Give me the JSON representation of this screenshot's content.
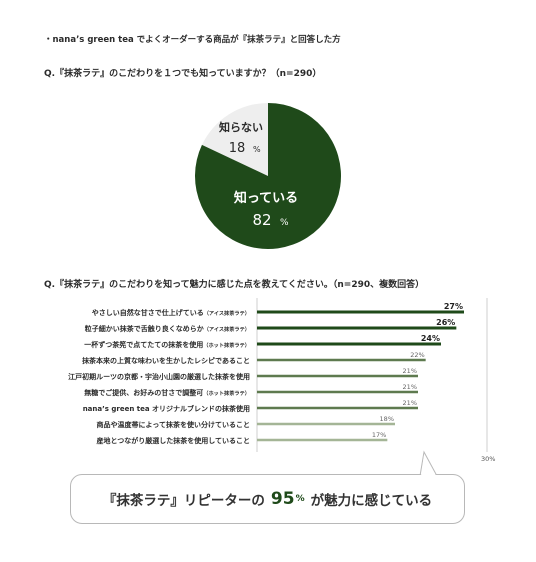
{
  "note": "・nana’s green tea でよくオーダーする商品が『抹茶ラテ』と回答した方",
  "callout": {
    "before": "『抹茶ラテ』リピーターの",
    "value": "95",
    "unit": "%",
    "after": "が魅力に感じている"
  },
  "colors": {
    "dark_green": "#1f4a1a",
    "mid_green": "#5e7a4f",
    "light_green": "#a4b596",
    "pie_light": "#eeeeee"
  },
  "chart_data": [
    {
      "type": "pie",
      "title": "Q.『抹茶ラテ』のこだわりを１つでも知っていますか？（n=290）",
      "slices": [
        {
          "label": "知っている",
          "value": 82,
          "display": "82",
          "unit": "%",
          "color": "#1f4a1a"
        },
        {
          "label": "知らない",
          "value": 18,
          "display": "18",
          "unit": "%",
          "color": "#eeeeee"
        }
      ]
    },
    {
      "type": "bar",
      "orientation": "horizontal",
      "title": "Q.『抹茶ラテ』のこだわりを知って魅力に感じた点を教えてください。（n=290、複数回答）",
      "axis_max": 30,
      "axis_max_label": "30%",
      "bars": [
        {
          "label": "やさしい自然な甘さで仕上げている",
          "note": "（アイス抹茶ラテ）",
          "value": 27,
          "display": "27%",
          "color": "#1f4a1a"
        },
        {
          "label": "粒子細かい抹茶で舌触り良くなめらか",
          "note": "（アイス抹茶ラテ）",
          "value": 26,
          "display": "26%",
          "color": "#1f4a1a"
        },
        {
          "label": "一杯ずつ茶筅で点てたての抹茶を使用",
          "note": "（ホット抹茶ラテ）",
          "value": 24,
          "display": "24%",
          "color": "#1f4a1a"
        },
        {
          "label": "抹茶本来の上質な味わいを生かしたレシピであること",
          "note": "",
          "value": 22,
          "display": "22%",
          "color": "#5e7a4f"
        },
        {
          "label": "江戸初期ルーツの京都・宇治小山園の厳選した抹茶を使用",
          "note": "",
          "value": 21,
          "display": "21%",
          "color": "#5e7a4f"
        },
        {
          "label": "無糖でご提供、お好みの甘さで調整可",
          "note": "（ホット抹茶ラテ）",
          "value": 21,
          "display": "21%",
          "color": "#5e7a4f"
        },
        {
          "label": "nana’s green tea オリジナルブレンドの抹茶使用",
          "note": "",
          "value": 21,
          "display": "21%",
          "color": "#5e7a4f"
        },
        {
          "label": "商品や温度帯によって抹茶を使い分けていること",
          "note": "",
          "value": 18,
          "display": "18%",
          "color": "#a4b596"
        },
        {
          "label": "産地とつながり厳選した抹茶を使用していること",
          "note": "",
          "value": 17,
          "display": "17%",
          "color": "#a4b596"
        }
      ]
    }
  ]
}
